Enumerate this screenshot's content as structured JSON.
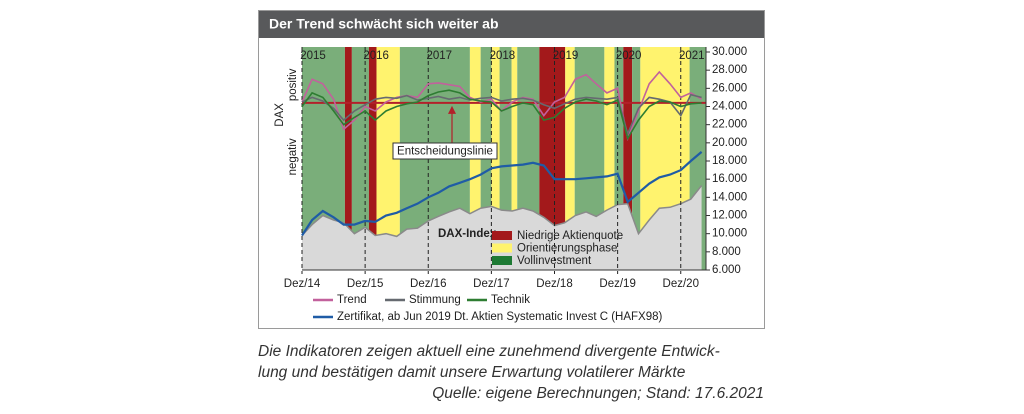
{
  "chart_data": {
    "type": "line",
    "title": "Der Trend schwächt sich weiter ab",
    "xlim": [
      2014.92,
      2021.32
    ],
    "xticks": [
      {
        "value": 2014.92,
        "label": "Dez/14"
      },
      {
        "value": 2015.92,
        "label": "Dez/15"
      },
      {
        "value": 2016.92,
        "label": "Dez/16"
      },
      {
        "value": 2017.92,
        "label": "Dez/17"
      },
      {
        "value": 2018.92,
        "label": "Dez/18"
      },
      {
        "value": 2019.92,
        "label": "Dez/19"
      },
      {
        "value": 2020.92,
        "label": "Dez/20"
      }
    ],
    "year_labels": [
      2015,
      2016,
      2017,
      2018,
      2019,
      2020,
      2021
    ],
    "ylim": [
      6000,
      30000
    ],
    "yticks": [
      {
        "value": 30000,
        "label": "30.000"
      },
      {
        "value": 28000,
        "label": "28.000"
      },
      {
        "value": 26000,
        "label": "26.000"
      },
      {
        "value": 24000,
        "label": "24.000"
      },
      {
        "value": 22000,
        "label": "22.000"
      },
      {
        "value": 20000,
        "label": "20.000"
      },
      {
        "value": 18000,
        "label": "18.000"
      },
      {
        "value": 16000,
        "label": "16.000"
      },
      {
        "value": 14000,
        "label": "14.000"
      },
      {
        "value": 12000,
        "label": "12.000"
      },
      {
        "value": 10000,
        "label": "10.000"
      },
      {
        "value": 8000,
        "label": "8.000"
      },
      {
        "value": 6000,
        "label": "6.000"
      }
    ],
    "left_axis": {
      "label": "DAX",
      "positive": "positiv",
      "negative": "negativ"
    },
    "phase_legend": [
      {
        "name": "Niedrige Aktienquote",
        "color": "#a3191b"
      },
      {
        "name": "Orientierungsphase",
        "color": "#fff36e"
      },
      {
        "name": "Vollinvestment",
        "color": "#1e7a34"
      }
    ],
    "phase_fill": [
      "#a3191b",
      "#fff36e",
      "#7aae7a"
    ],
    "phases": [
      {
        "start": 2014.92,
        "end": 2015.6,
        "phase": 2
      },
      {
        "start": 2015.6,
        "end": 2015.71,
        "phase": 0
      },
      {
        "start": 2015.71,
        "end": 2015.98,
        "phase": 2
      },
      {
        "start": 2015.98,
        "end": 2016.1,
        "phase": 0
      },
      {
        "start": 2016.1,
        "end": 2016.47,
        "phase": 1
      },
      {
        "start": 2016.47,
        "end": 2017.58,
        "phase": 2
      },
      {
        "start": 2017.58,
        "end": 2017.75,
        "phase": 1
      },
      {
        "start": 2017.75,
        "end": 2017.92,
        "phase": 2
      },
      {
        "start": 2017.92,
        "end": 2018.05,
        "phase": 1
      },
      {
        "start": 2018.05,
        "end": 2018.24,
        "phase": 2
      },
      {
        "start": 2018.24,
        "end": 2018.33,
        "phase": 1
      },
      {
        "start": 2018.33,
        "end": 2018.68,
        "phase": 2
      },
      {
        "start": 2018.68,
        "end": 2019.09,
        "phase": 0
      },
      {
        "start": 2019.09,
        "end": 2019.24,
        "phase": 1
      },
      {
        "start": 2019.24,
        "end": 2019.71,
        "phase": 2
      },
      {
        "start": 2019.71,
        "end": 2019.87,
        "phase": 1
      },
      {
        "start": 2019.87,
        "end": 2020.01,
        "phase": 2
      },
      {
        "start": 2020.01,
        "end": 2020.15,
        "phase": 0
      },
      {
        "start": 2020.15,
        "end": 2020.28,
        "phase": 2
      },
      {
        "start": 2020.28,
        "end": 2021.06,
        "phase": 1
      },
      {
        "start": 2021.06,
        "end": 2021.32,
        "phase": 2
      }
    ],
    "x": [
      2014.92,
      2015.08,
      2015.25,
      2015.42,
      2015.58,
      2015.75,
      2015.92,
      2016.08,
      2016.25,
      2016.42,
      2016.58,
      2016.75,
      2016.92,
      2017.08,
      2017.25,
      2017.42,
      2017.58,
      2017.75,
      2017.92,
      2018.08,
      2018.25,
      2018.42,
      2018.58,
      2018.75,
      2018.92,
      2019.08,
      2019.25,
      2019.42,
      2019.58,
      2019.75,
      2019.92,
      2020.08,
      2020.25,
      2020.42,
      2020.58,
      2020.75,
      2020.92,
      2021.08,
      2021.25
    ],
    "area": {
      "name": "DAX-Index",
      "color": "#d9d9d9",
      "edge": "#8a8a8a",
      "values": [
        9800,
        11000,
        12000,
        11500,
        11200,
        10000,
        10700,
        9800,
        10000,
        9700,
        10500,
        10600,
        11400,
        11900,
        12400,
        12800,
        12200,
        12800,
        13000,
        12600,
        12500,
        12800,
        12500,
        11800,
        10900,
        11200,
        12000,
        12400,
        11900,
        12600,
        13200,
        13300,
        10000,
        11500,
        12800,
        12900,
        13300,
        13800,
        15300
      ]
    },
    "decision_line": {
      "label": "Entscheidungslinie",
      "value": 24400,
      "color": "#b3202a"
    },
    "series": [
      {
        "name": "Trend",
        "color": "#c2619c",
        "values": [
          24500,
          27000,
          26500,
          24800,
          21500,
          22500,
          24000,
          23500,
          24500,
          25000,
          25200,
          25000,
          26500,
          26600,
          26400,
          26200,
          25000,
          24500,
          24800,
          23500,
          24500,
          25000,
          24800,
          23000,
          24500,
          25000,
          27000,
          27500,
          26500,
          25500,
          26000,
          20500,
          23500,
          26500,
          27800,
          26500,
          25000,
          25500,
          24800
        ]
      },
      {
        "name": "Stimmung",
        "color": "#666a70",
        "values": [
          24500,
          25000,
          24600,
          23800,
          22500,
          23500,
          24200,
          24800,
          25000,
          24900,
          25200,
          24700,
          24900,
          25100,
          24800,
          25000,
          24700,
          24900,
          25000,
          24600,
          24800,
          24900,
          24700,
          24200,
          23800,
          24300,
          24800,
          25000,
          24900,
          24800,
          25000,
          21000,
          23800,
          25000,
          24800,
          24500,
          23000,
          25300,
          25000
        ]
      },
      {
        "name": "Technik",
        "color": "#2e7d32",
        "values": [
          24000,
          25500,
          25000,
          23500,
          22000,
          22800,
          23500,
          22500,
          23500,
          24000,
          24300,
          24500,
          25200,
          25600,
          25800,
          25500,
          24800,
          24600,
          24500,
          23500,
          24000,
          24400,
          24200,
          22500,
          22800,
          23800,
          24500,
          24800,
          24600,
          24200,
          24700,
          20500,
          22500,
          24000,
          24600,
          24500,
          24000,
          24300,
          24400
        ]
      },
      {
        "name": "Zertifikat, ab Jun 2019 Dt. Aktien Systematic Invest C (HAFX98)",
        "color": "#1f5ca6",
        "values": [
          9800,
          11500,
          12500,
          11800,
          11000,
          11000,
          11400,
          11300,
          12000,
          12300,
          12800,
          13300,
          14000,
          14500,
          15200,
          15600,
          16000,
          16500,
          17200,
          17400,
          17500,
          17600,
          17800,
          17500,
          16000,
          16000,
          16000,
          16100,
          16200,
          16300,
          16600,
          13500,
          14500,
          15500,
          16200,
          16500,
          17000,
          18000,
          19000
        ]
      }
    ],
    "caption": [
      "Die Indikatoren zeigen aktuell eine zunehmend divergente Entwick-",
      "lung und bestätigen damit unsere Erwartung volatilerer Märkte",
      "Quelle: eigene Berechnungen; Stand: 17.6.2021"
    ]
  }
}
